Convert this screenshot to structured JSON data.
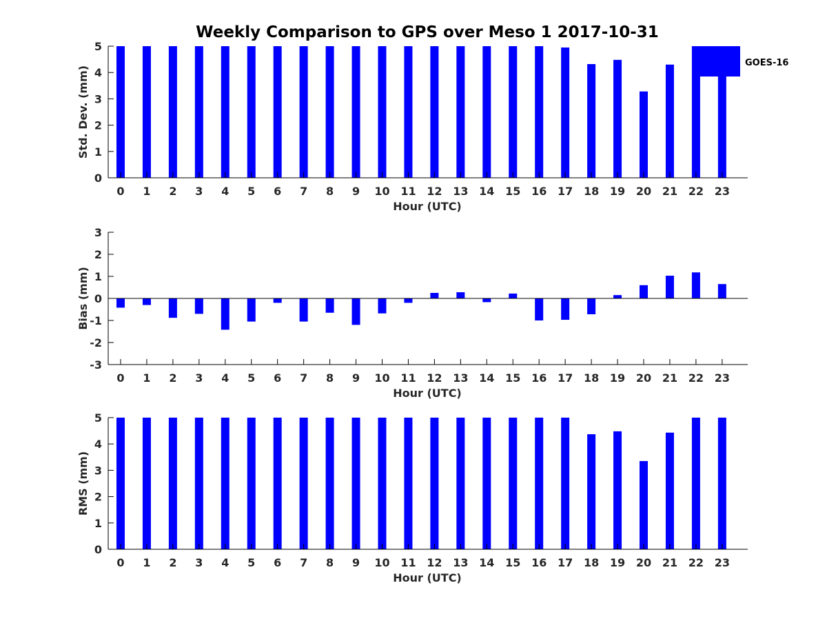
{
  "title": "Weekly Comparison to GPS over Meso 1 2017-10-31",
  "legend": {
    "label": "GOES-16",
    "color": "#0000ff",
    "position": "top-right"
  },
  "colors": {
    "bar": "#0000ff",
    "axis": "#000000",
    "text": "#262626"
  },
  "chart_data": [
    {
      "type": "bar",
      "name": "std-dev",
      "ylabel": "Std. Dev. (mm)",
      "xlabel": "Hour (UTC)",
      "ylim": [
        0,
        5
      ],
      "yticks": [
        "0",
        "1",
        "2",
        "3",
        "4",
        "5"
      ],
      "categories": [
        "0",
        "1",
        "2",
        "3",
        "4",
        "5",
        "6",
        "7",
        "8",
        "9",
        "10",
        "11",
        "12",
        "13",
        "14",
        "15",
        "16",
        "17",
        "18",
        "19",
        "20",
        "21",
        "22",
        "23"
      ],
      "values": [
        5,
        5,
        5,
        5,
        5,
        5,
        5,
        5,
        5,
        5,
        5,
        5,
        5,
        5,
        5,
        5,
        5,
        4.95,
        4.32,
        4.48,
        3.28,
        4.3,
        5,
        5
      ]
    },
    {
      "type": "bar",
      "name": "bias",
      "ylabel": "Bias (mm)",
      "xlabel": "Hour (UTC)",
      "ylim": [
        -3,
        3
      ],
      "yticks": [
        "-3",
        "-2",
        "-1",
        "0",
        "1",
        "2",
        "3"
      ],
      "categories": [
        "0",
        "1",
        "2",
        "3",
        "4",
        "5",
        "6",
        "7",
        "8",
        "9",
        "10",
        "11",
        "12",
        "13",
        "14",
        "15",
        "16",
        "17",
        "18",
        "19",
        "20",
        "21",
        "22",
        "23"
      ],
      "values": [
        -0.42,
        -0.3,
        -0.88,
        -0.7,
        -1.42,
        -1.05,
        -0.2,
        -1.05,
        -0.65,
        -1.2,
        -0.68,
        -0.2,
        0.25,
        0.28,
        -0.17,
        0.22,
        -1.0,
        -0.97,
        -0.72,
        0.15,
        0.6,
        1.03,
        1.18,
        0.65
      ]
    },
    {
      "type": "bar",
      "name": "rms",
      "ylabel": "RMS (mm)",
      "xlabel": "Hour (UTC)",
      "ylim": [
        0,
        5
      ],
      "yticks": [
        "0",
        "1",
        "2",
        "3",
        "4",
        "5"
      ],
      "categories": [
        "0",
        "1",
        "2",
        "3",
        "4",
        "5",
        "6",
        "7",
        "8",
        "9",
        "10",
        "11",
        "12",
        "13",
        "14",
        "15",
        "16",
        "17",
        "18",
        "19",
        "20",
        "21",
        "22",
        "23"
      ],
      "values": [
        5,
        5,
        5,
        5,
        5,
        5,
        5,
        5,
        5,
        5,
        5,
        5,
        5,
        5,
        5,
        5,
        5,
        5,
        4.37,
        4.48,
        3.35,
        4.43,
        5,
        5
      ]
    }
  ]
}
